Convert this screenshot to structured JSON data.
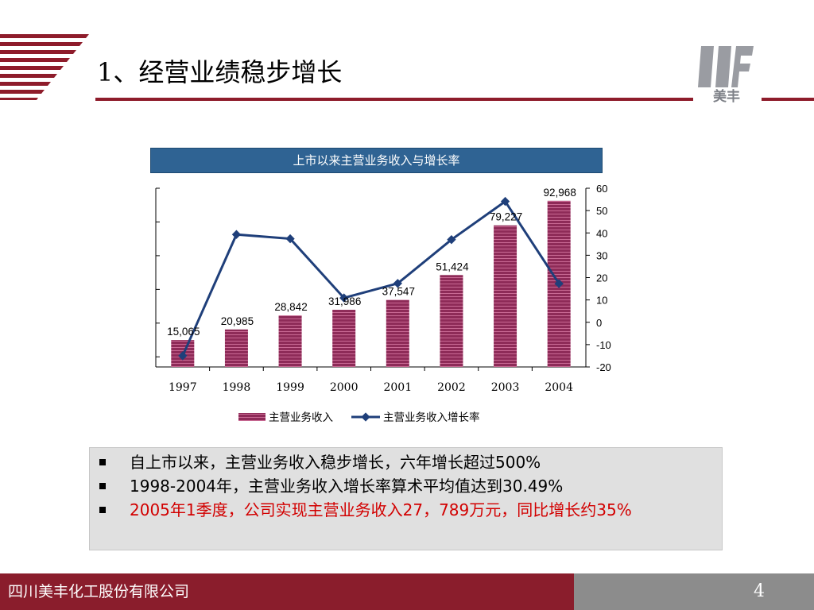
{
  "header": {
    "title": "1、经营业绩稳步增长",
    "logo_text": "美丰",
    "accent_color": "#8e1c2b"
  },
  "chart_data": {
    "type": "bar",
    "title": "上市以来主营业务收入与增长率",
    "categories": [
      "1997",
      "1998",
      "1999",
      "2000",
      "2001",
      "2002",
      "2003",
      "2004"
    ],
    "series": [
      {
        "name": "主营业务收入",
        "type": "bar",
        "values": [
          15065,
          20985,
          28842,
          31986,
          37547,
          51424,
          79227,
          92968
        ],
        "labels": [
          "15,065",
          "20,985",
          "28,842",
          "31,986",
          "37,547",
          "51,424",
          "79,227",
          "92,968"
        ],
        "color": "#8e2b58"
      },
      {
        "name": "主营业务收入增长率",
        "type": "line",
        "axis": "right",
        "values": [
          -15,
          39.3,
          37.4,
          10.9,
          17.4,
          37.0,
          54.1,
          17.3
        ],
        "color": "#1f3f7a"
      }
    ],
    "y_left_lim": [
      0,
      100000
    ],
    "y_right_lim": [
      -20,
      60
    ],
    "y_right_ticks": [
      "60",
      "50",
      "40",
      "30",
      "20",
      "10",
      "0",
      "-10",
      "-20"
    ],
    "grid": false,
    "legend_position": "bottom"
  },
  "bullets": [
    {
      "text": "自上市以来，主营业务收入稳步增长，六年增长超过500%",
      "color": "#000000"
    },
    {
      "text": "1998-2004年，主营业务收入增长率算术平均值达到30.49%",
      "color": "#000000"
    },
    {
      "text": "2005年1季度，公司实现主营业务收入27，789万元，同比增长约35%",
      "color": "#d20000"
    }
  ],
  "footer": {
    "company": "四川美丰化工股份有限公司",
    "page_number": "4"
  }
}
